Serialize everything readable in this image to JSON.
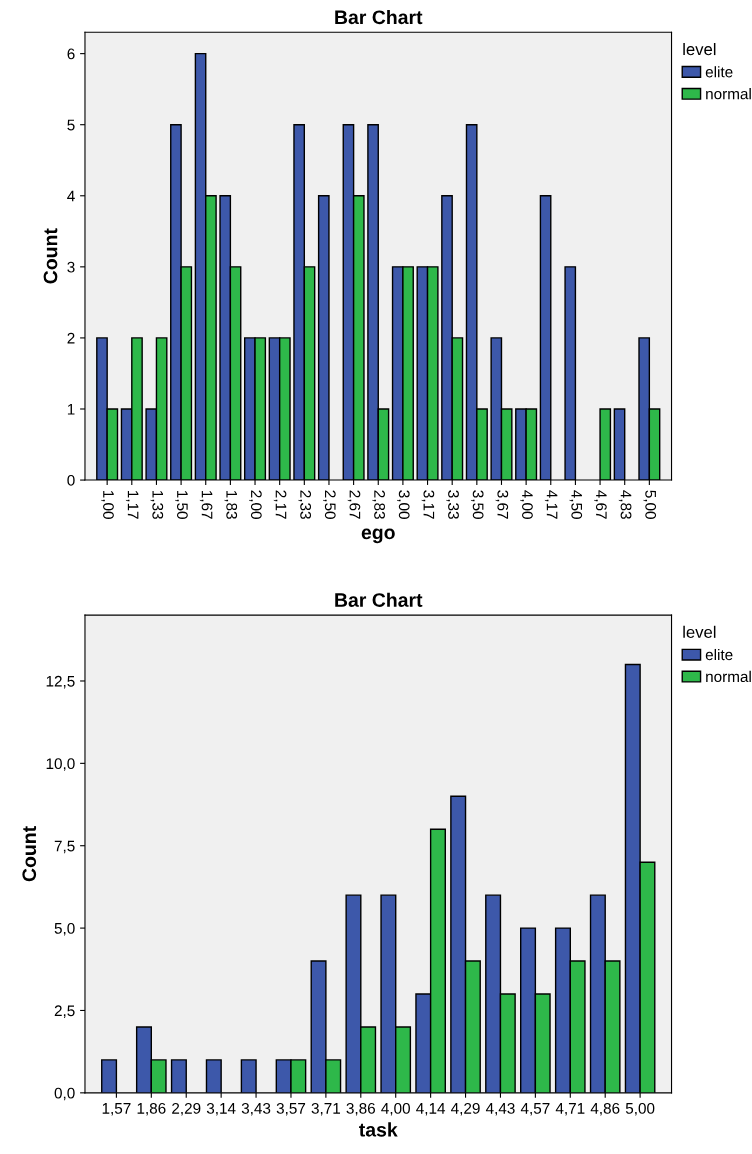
{
  "chart_data": [
    {
      "type": "bar",
      "title": "Bar Chart",
      "xlabel": "ego",
      "ylabel": "Count",
      "legend_title": "level",
      "legend": "top right",
      "grid": false,
      "categories": [
        "1,00",
        "1,17",
        "1,33",
        "1,50",
        "1,67",
        "1,83",
        "2,00",
        "2,17",
        "2,33",
        "2,50",
        "2,67",
        "2,83",
        "3,00",
        "3,17",
        "3,33",
        "3,50",
        "3,67",
        "4,00",
        "4,17",
        "4,50",
        "4,67",
        "4,83",
        "5,00"
      ],
      "series": [
        {
          "name": "elite",
          "color": "#3d58aa",
          "values": [
            2,
            1,
            1,
            5,
            6,
            4,
            2,
            2,
            5,
            4,
            5,
            5,
            3,
            3,
            4,
            5,
            2,
            1,
            4,
            3,
            null,
            1,
            2
          ]
        },
        {
          "name": "normal",
          "color": "#2eb84a",
          "values": [
            1,
            2,
            2,
            3,
            4,
            3,
            2,
            2,
            3,
            null,
            4,
            1,
            3,
            3,
            2,
            1,
            1,
            1,
            null,
            null,
            1,
            null,
            1
          ]
        }
      ],
      "ylim": [
        0,
        6.3
      ],
      "yticks": [
        0,
        1,
        2,
        3,
        4,
        5,
        6
      ]
    },
    {
      "type": "bar",
      "title": "Bar Chart",
      "xlabel": "task",
      "ylabel": "Count",
      "legend_title": "level",
      "legend": "top right",
      "grid": false,
      "categories": [
        "1,57",
        "1,86",
        "2,29",
        "3,14",
        "3,43",
        "3,57",
        "3,71",
        "3,86",
        "4,00",
        "4,14",
        "4,29",
        "4,43",
        "4,57",
        "4,71",
        "4,86",
        "5,00"
      ],
      "series": [
        {
          "name": "elite",
          "color": "#3d58aa",
          "values": [
            1,
            2,
            1,
            1,
            1,
            1,
            4,
            6,
            6,
            3,
            9,
            6,
            5,
            5,
            6,
            13
          ]
        },
        {
          "name": "normal",
          "color": "#2eb84a",
          "values": [
            null,
            1,
            null,
            null,
            null,
            1,
            1,
            2,
            2,
            8,
            4,
            3,
            3,
            4,
            4,
            7
          ]
        }
      ],
      "ylim": [
        0,
        14.5
      ],
      "yticks": [
        {
          "value": 0,
          "label": "0,0"
        },
        {
          "value": 2.5,
          "label": "2,5"
        },
        {
          "value": 5,
          "label": "5,0"
        },
        {
          "value": 7.5,
          "label": "7,5"
        },
        {
          "value": 10,
          "label": "10,0"
        },
        {
          "value": 12.5,
          "label": "12,5"
        }
      ]
    }
  ]
}
